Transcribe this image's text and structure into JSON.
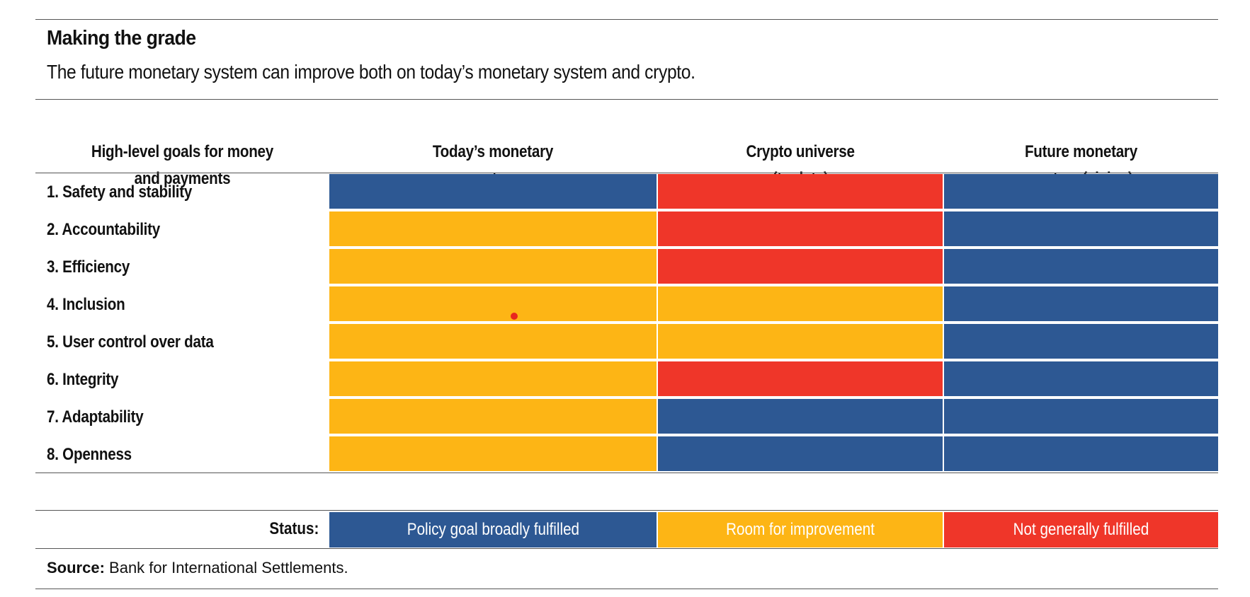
{
  "title": "Making the grade",
  "subtitle": "The future monetary system can improve both on today’s monetary system and crypto.",
  "chart_data": {
    "type": "table",
    "column_headers": [
      "High-level goals for money\nand payments",
      "Today’s monetary\nsystem",
      "Crypto universe\n(to date)",
      "Future monetary\nsystem (vision)"
    ],
    "rows": [
      {
        "label": "1. Safety and stability",
        "status": [
          "fulfilled",
          "not_fulfilled",
          "fulfilled"
        ]
      },
      {
        "label": "2. Accountability",
        "status": [
          "improvement",
          "not_fulfilled",
          "fulfilled"
        ]
      },
      {
        "label": "3. Efficiency",
        "status": [
          "improvement",
          "not_fulfilled",
          "fulfilled"
        ]
      },
      {
        "label": "4. Inclusion",
        "status": [
          "improvement",
          "improvement",
          "fulfilled"
        ]
      },
      {
        "label": "5. User control over data",
        "status": [
          "improvement",
          "improvement",
          "fulfilled"
        ]
      },
      {
        "label": "6. Integrity",
        "status": [
          "improvement",
          "not_fulfilled",
          "fulfilled"
        ]
      },
      {
        "label": "7. Adaptability",
        "status": [
          "improvement",
          "fulfilled",
          "fulfilled"
        ]
      },
      {
        "label": "8. Openness",
        "status": [
          "improvement",
          "fulfilled",
          "fulfilled"
        ]
      }
    ],
    "legend": {
      "label": "Status:",
      "items": [
        {
          "key": "fulfilled",
          "text": "Policy goal broadly fulfilled",
          "color": "#2d5893",
          "text_color": "#ffffff"
        },
        {
          "key": "improvement",
          "text": "Room for improvement",
          "color": "#fdb515",
          "text_color": "#ffffff"
        },
        {
          "key": "not_fulfilled",
          "text": "Not generally fulfilled",
          "color": "#ef3629",
          "text_color": "#ffffff"
        }
      ]
    }
  },
  "source": {
    "label": "Source:",
    "text": " Bank for International Settlements."
  }
}
